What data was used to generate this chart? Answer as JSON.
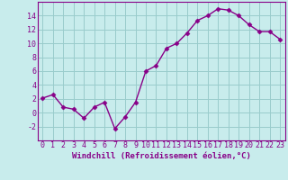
{
  "x": [
    0,
    1,
    2,
    3,
    4,
    5,
    6,
    7,
    8,
    9,
    10,
    11,
    12,
    13,
    14,
    15,
    16,
    17,
    18,
    19,
    20,
    21,
    22,
    23
  ],
  "y": [
    2.1,
    2.6,
    0.8,
    0.5,
    -0.8,
    0.8,
    1.5,
    -2.3,
    -0.6,
    1.5,
    6.0,
    6.8,
    9.3,
    10.0,
    11.5,
    13.3,
    14.0,
    15.0,
    14.8,
    14.0,
    12.7,
    11.7,
    11.7,
    10.6
  ],
  "color": "#880088",
  "bg_color": "#c8ecec",
  "grid_color": "#99cccc",
  "xlabel": "Windchill (Refroidissement éolien,°C)",
  "ylim": [
    -4,
    16
  ],
  "xlim": [
    -0.5,
    23.5
  ],
  "yticks": [
    -2,
    0,
    2,
    4,
    6,
    8,
    10,
    12,
    14
  ],
  "xticks": [
    0,
    1,
    2,
    3,
    4,
    5,
    6,
    7,
    8,
    9,
    10,
    11,
    12,
    13,
    14,
    15,
    16,
    17,
    18,
    19,
    20,
    21,
    22,
    23
  ],
  "markersize": 2.5,
  "linewidth": 1.0,
  "xlabel_fontsize": 6.5,
  "tick_fontsize": 6.0
}
